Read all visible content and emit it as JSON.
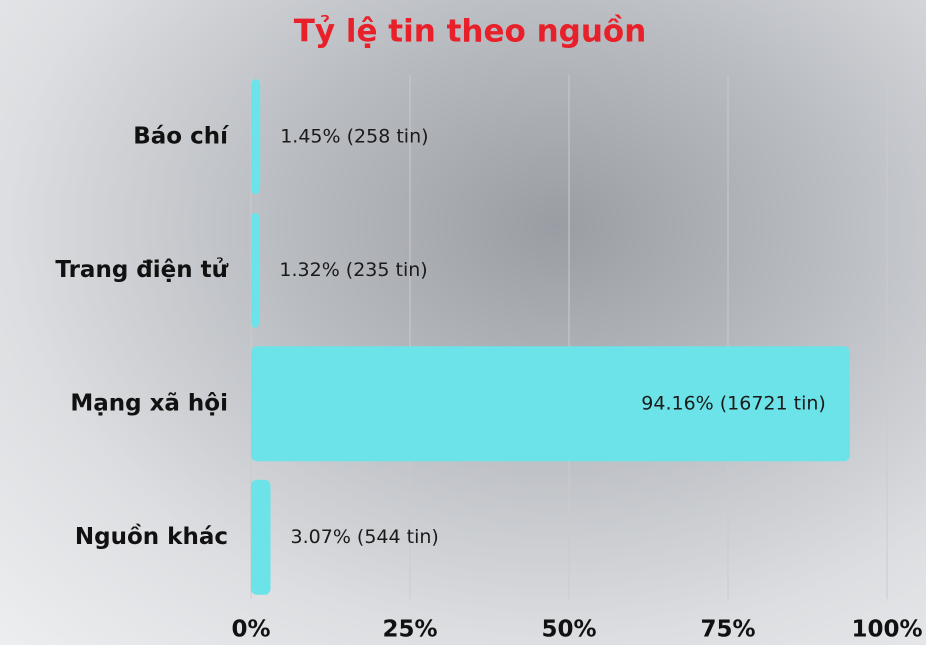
{
  "chart_data": {
    "type": "barh",
    "title": "Tỷ lệ tin theo nguồn",
    "categories": [
      "Báo chí",
      "Trang điện tử",
      "Mạng xã hội",
      "Nguồn khác"
    ],
    "values": [
      1.45,
      1.32,
      94.16,
      3.07
    ],
    "value_labels": [
      "1.45% (258 tin)",
      "1.32% (235 tin)",
      "94.16% (16721 tin)",
      "3.07% (544 tin)"
    ],
    "color": "#6be3e8",
    "xlim": [
      0,
      100
    ],
    "xticks": [
      {
        "value": 0,
        "label": "0%"
      },
      {
        "value": 25,
        "label": "25%"
      },
      {
        "value": 50,
        "label": "50%"
      },
      {
        "value": 75,
        "label": "75%"
      },
      {
        "value": 100,
        "label": "100%"
      }
    ],
    "grid": true
  }
}
